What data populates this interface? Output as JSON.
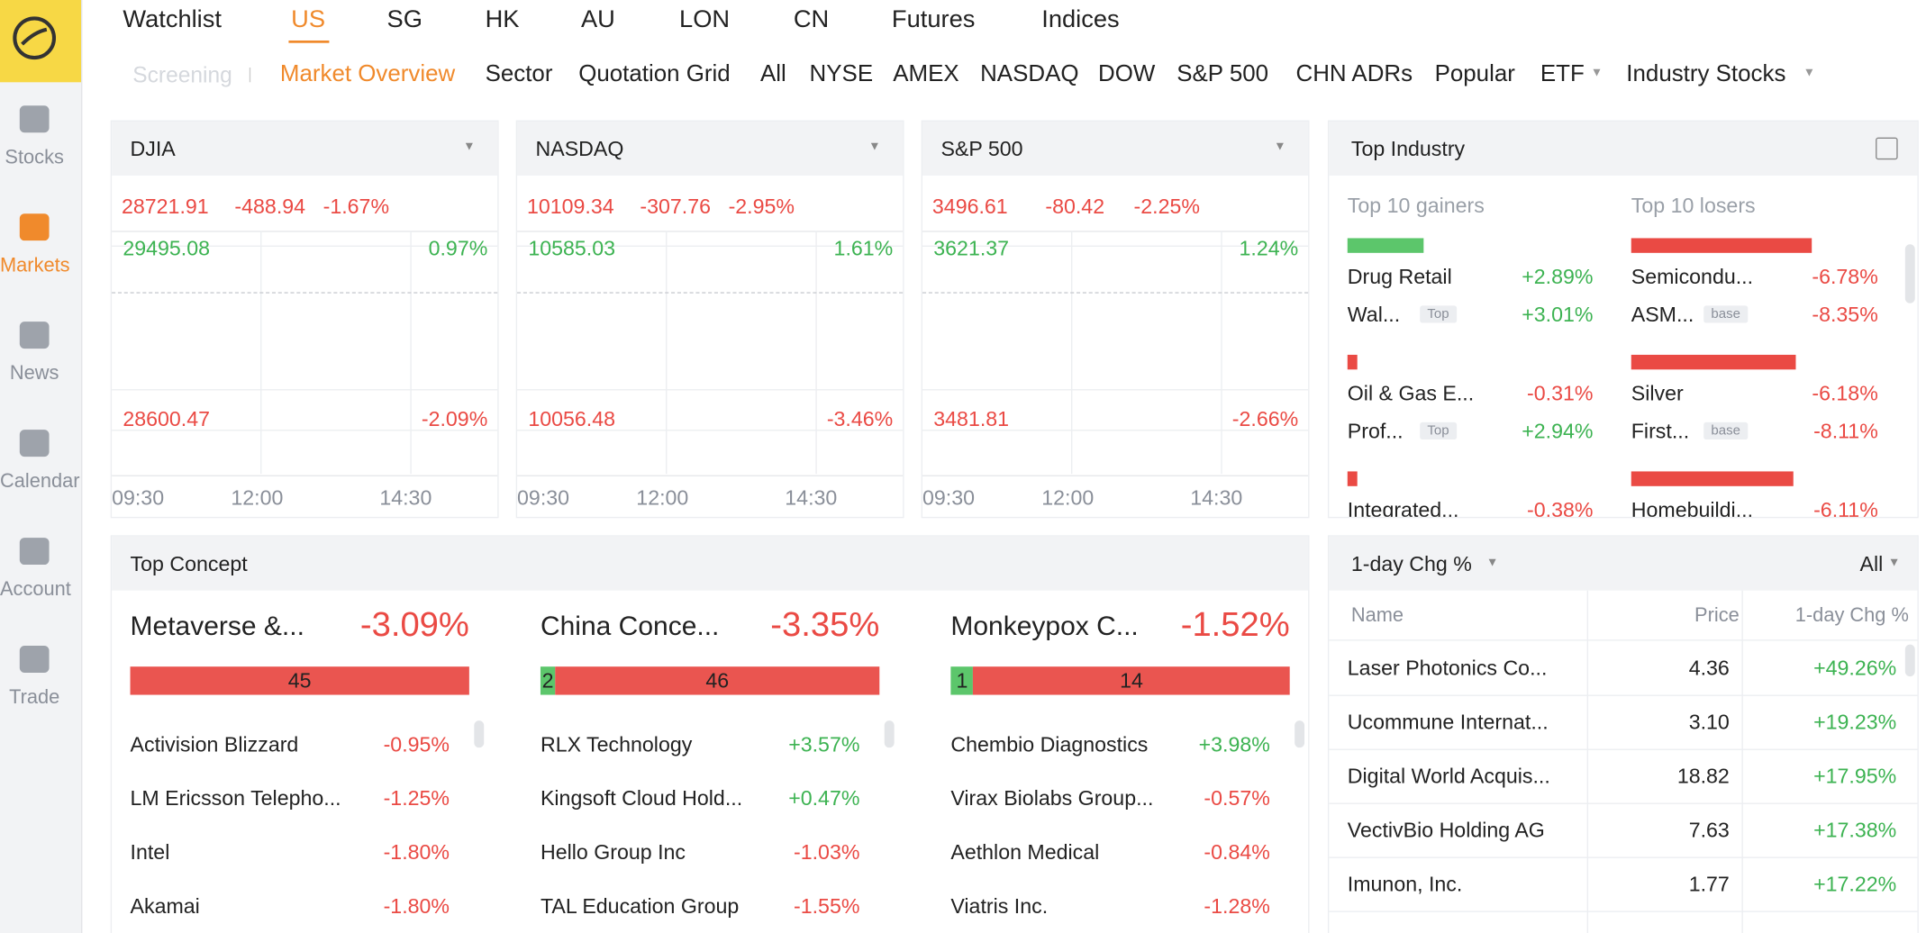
{
  "sidebar": {
    "items": [
      "Stocks",
      "Markets",
      "News",
      "Calendar",
      "Account",
      "Trade"
    ]
  },
  "tabs": [
    "Watchlist",
    "US",
    "SG",
    "HK",
    "AU",
    "LON",
    "CN",
    "Futures",
    "Indices"
  ],
  "subtabs": {
    "screening": "Screening",
    "items": [
      "Market Overview",
      "Sector",
      "Quotation Grid",
      "All",
      "NYSE",
      "AMEX",
      "NASDAQ",
      "DOW",
      "S&P 500",
      "CHN ADRs",
      "Popular",
      "ETF",
      "Industry Stocks"
    ]
  },
  "indices": [
    {
      "name": "DJIA",
      "price": "28721.91",
      "change": "-488.94",
      "pct": "-1.67%",
      "high": "29495.08",
      "high_pct": "0.97%",
      "low": "28600.47",
      "low_pct": "-2.09%",
      "times": [
        "09:30",
        "12:00",
        "14:30"
      ]
    },
    {
      "name": "NASDAQ",
      "price": "10109.34",
      "change": "-307.76",
      "pct": "-2.95%",
      "high": "10585.03",
      "high_pct": "1.61%",
      "low": "10056.48",
      "low_pct": "-3.46%",
      "times": [
        "09:30",
        "12:00",
        "14:30"
      ]
    },
    {
      "name": "S&P 500",
      "price": "3496.61",
      "change": "-80.42",
      "pct": "-2.25%",
      "high": "3621.37",
      "high_pct": "1.24%",
      "low": "3481.81",
      "low_pct": "-2.66%",
      "times": [
        "09:30",
        "12:00",
        "14:30"
      ]
    }
  ],
  "top_industry": {
    "title": "Top Industry",
    "gainers_label": "Top 10 gainers",
    "losers_label": "Top 10 losers",
    "gainers": [
      {
        "name": "Drug Retail",
        "pct": "+2.89%",
        "stock": "Wal...",
        "tag": "Top",
        "stock_pct": "+3.01%"
      },
      {
        "name": "Oil & Gas E...",
        "pct": "-0.31%",
        "stock": "Prof...",
        "tag": "Top",
        "stock_pct": "+2.94%"
      },
      {
        "name": "Integrated...",
        "pct": "-0.38%"
      }
    ],
    "losers": [
      {
        "name": "Semicondu...",
        "pct": "-6.78%",
        "stock": "ASM...",
        "tag": "base",
        "stock_pct": "-8.35%"
      },
      {
        "name": "Silver",
        "pct": "-6.18%",
        "stock": "First...",
        "tag": "base",
        "stock_pct": "-8.11%"
      },
      {
        "name": "Homebuildi...",
        "pct": "-6.11%"
      }
    ]
  },
  "top_concept": {
    "title": "Top Concept",
    "groups": [
      {
        "name": "Metaverse &...",
        "pct": "-3.09%",
        "down": 45,
        "stocks": [
          [
            "Activision Blizzard",
            "-0.95%"
          ],
          [
            "LM Ericsson Telepho...",
            "-1.25%"
          ],
          [
            "Intel",
            "-1.80%"
          ],
          [
            "Akamai",
            "-1.80%"
          ]
        ]
      },
      {
        "name": "China Conce...",
        "pct": "-3.35%",
        "up": 2,
        "down": 46,
        "stocks": [
          [
            "RLX Technology",
            "+3.57%"
          ],
          [
            "Kingsoft Cloud Hold...",
            "+0.47%"
          ],
          [
            "Hello Group Inc",
            "-1.03%"
          ],
          [
            "TAL Education Group",
            "-1.55%"
          ]
        ]
      },
      {
        "name": "Monkeypox C...",
        "pct": "-1.52%",
        "up": 1,
        "down": 14,
        "stocks": [
          [
            "Chembio Diagnostics",
            "+3.98%"
          ],
          [
            "Virax Biolabs Group...",
            "-0.57%"
          ],
          [
            "Aethlon Medical",
            "-0.84%"
          ],
          [
            "Viatris Inc.",
            "-1.28%"
          ]
        ]
      }
    ]
  },
  "rank": {
    "title": "1-day Chg %",
    "filter": "All",
    "columns": [
      "Name",
      "Price",
      "1-day Chg %"
    ],
    "rows": [
      [
        "Laser Photonics Co...",
        "4.36",
        "+49.26%"
      ],
      [
        "Ucommune Internat...",
        "3.10",
        "+19.23%"
      ],
      [
        "Digital World Acquis...",
        "18.82",
        "+17.95%"
      ],
      [
        "VectivBio Holding AG",
        "7.63",
        "+17.38%"
      ],
      [
        "Imunon, Inc.",
        "1.77",
        "+17.22%"
      ]
    ]
  }
}
